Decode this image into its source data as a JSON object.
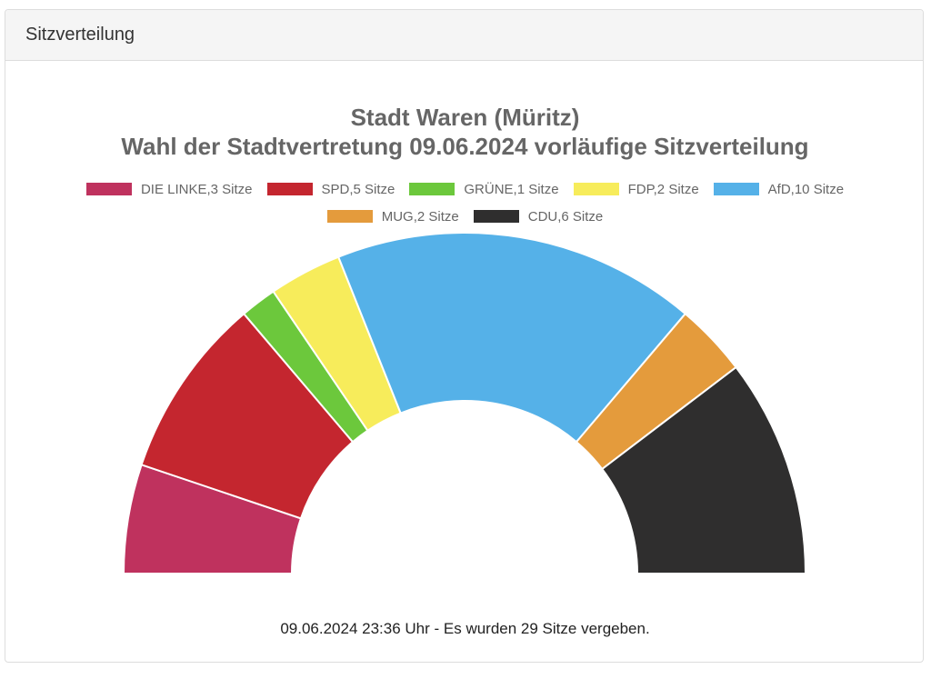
{
  "panel": {
    "heading": "Sitzverteilung"
  },
  "chart_data": {
    "type": "pie",
    "style": "half-donut parliament",
    "title_line1": "Stadt Waren (Müritz)",
    "title_line2": "Wahl der Stadtvertretung 09.06.2024 vorläufige Sitzverteilung",
    "legend_placement": "top",
    "series": [
      {
        "name": "DIE LINKE",
        "value": 3,
        "label": "DIE LINKE,3 Sitze",
        "color": "#bf325e"
      },
      {
        "name": "SPD",
        "value": 5,
        "label": "SPD,5 Sitze",
        "color": "#c4262f"
      },
      {
        "name": "GRÜNE",
        "value": 1,
        "label": "GRÜNE,1 Sitze",
        "color": "#6cc83c"
      },
      {
        "name": "FDP",
        "value": 2,
        "label": "FDP,2 Sitze",
        "color": "#f7ec5b"
      },
      {
        "name": "AfD",
        "value": 10,
        "label": "AfD,10 Sitze",
        "color": "#55b1e8"
      },
      {
        "name": "MUG",
        "value": 2,
        "label": "MUG,2 Sitze",
        "color": "#e49b3c"
      },
      {
        "name": "CDU",
        "value": 6,
        "label": "CDU,6 Sitze",
        "color": "#2f2e2e"
      }
    ],
    "total_seats": 29
  },
  "footer": {
    "text": "09.06.2024 23:36 Uhr - Es wurden 29 Sitze vergeben."
  }
}
